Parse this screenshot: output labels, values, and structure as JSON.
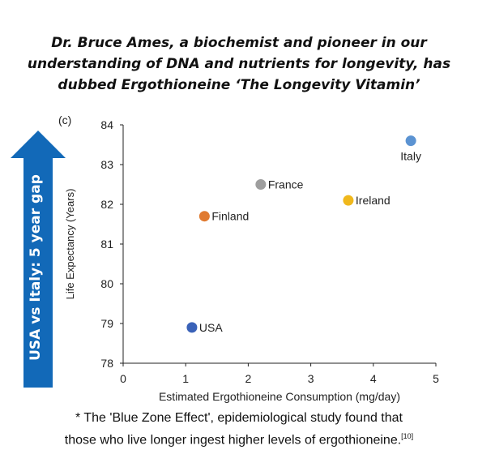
{
  "headline": {
    "line1": "Dr. Bruce Ames, a biochemist and pioneer in our",
    "line2": "understanding of DNA and nutrients for longevity, has",
    "line3": "dubbed Ergothioneine ‘The Longevity Vitamin’"
  },
  "side_arrow": {
    "label": "USA vs Italy: 5 year gap",
    "color": "#1269b8"
  },
  "chart_data": {
    "type": "scatter",
    "panel_label": "(c)",
    "xlabel": "Estimated Ergothioneine Consumption (mg/day)",
    "ylabel": "Life Expectancy (Years)",
    "xlim": [
      0,
      5
    ],
    "ylim": [
      78,
      84
    ],
    "x_ticks": [
      0,
      1,
      2,
      3,
      4,
      5
    ],
    "y_ticks": [
      78,
      79,
      80,
      81,
      82,
      83,
      84
    ],
    "grid": false,
    "points": [
      {
        "label": "USA",
        "x": 1.1,
        "y": 78.9,
        "color": "#3a62b8"
      },
      {
        "label": "Finland",
        "x": 1.3,
        "y": 81.7,
        "color": "#e07a30"
      },
      {
        "label": "France",
        "x": 2.2,
        "y": 82.5,
        "color": "#9e9e9e"
      },
      {
        "label": "Ireland",
        "x": 3.6,
        "y": 82.1,
        "color": "#f0b81c"
      },
      {
        "label": "Italy",
        "x": 4.6,
        "y": 83.6,
        "color": "#5b93d2"
      }
    ]
  },
  "footnote": {
    "line1": "* The 'Blue Zone Effect', epidemiological study found that",
    "line2": "those who live longer ingest higher levels of ergothioneine.",
    "ref": "[10]"
  }
}
